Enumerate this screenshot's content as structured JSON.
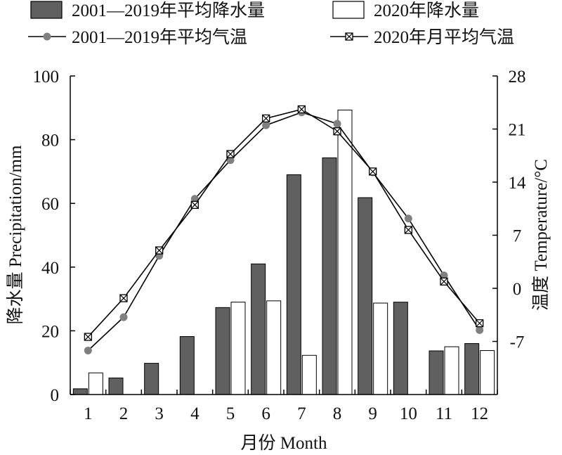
{
  "chart_data": {
    "type": "bar",
    "categories": [
      "1",
      "2",
      "3",
      "4",
      "5",
      "6",
      "7",
      "8",
      "9",
      "10",
      "11",
      "12"
    ],
    "series": [
      {
        "name": "2001—2019年平均降水量",
        "kind": "bar",
        "axis": "left",
        "color": "#606060",
        "values": [
          1.8,
          5.2,
          9.8,
          18.2,
          27.3,
          41.0,
          69.0,
          74.3,
          61.8,
          29.0,
          13.7,
          16.0
        ]
      },
      {
        "name": "2020年降水量",
        "kind": "bar",
        "axis": "left",
        "color": "#ffffff",
        "values": [
          6.8,
          0,
          0,
          0,
          29.0,
          29.4,
          12.3,
          89.3,
          28.7,
          0,
          15.0,
          13.8
        ]
      },
      {
        "name": "2001—2019年平均气温",
        "kind": "line",
        "marker": "circle",
        "axis": "right",
        "color": "#808080",
        "values": [
          -8.2,
          -3.8,
          4.3,
          11.8,
          16.9,
          21.5,
          23.2,
          21.7,
          15.3,
          9.2,
          1.7,
          -5.5
        ]
      },
      {
        "name": "2020年月平均气温",
        "kind": "line",
        "marker": "boxed-x",
        "axis": "right",
        "color": "#333333",
        "values": [
          -6.4,
          -1.3,
          5.0,
          11.0,
          17.7,
          22.4,
          23.6,
          20.7,
          15.4,
          7.7,
          0.9,
          -4.6
        ]
      }
    ],
    "y_left": {
      "label": "降水量 Precipitation/mm",
      "range": [
        0,
        100
      ],
      "ticks": [
        "0",
        "20",
        "40",
        "60",
        "80",
        "100"
      ]
    },
    "y_right": {
      "label": "温度 Temperature/°C",
      "range": [
        -14,
        28
      ],
      "ticks": [
        "-7",
        "0",
        "7",
        "14",
        "21",
        "28"
      ]
    },
    "xlabel": "月份 Month",
    "legend_position": "top",
    "grid": false
  }
}
